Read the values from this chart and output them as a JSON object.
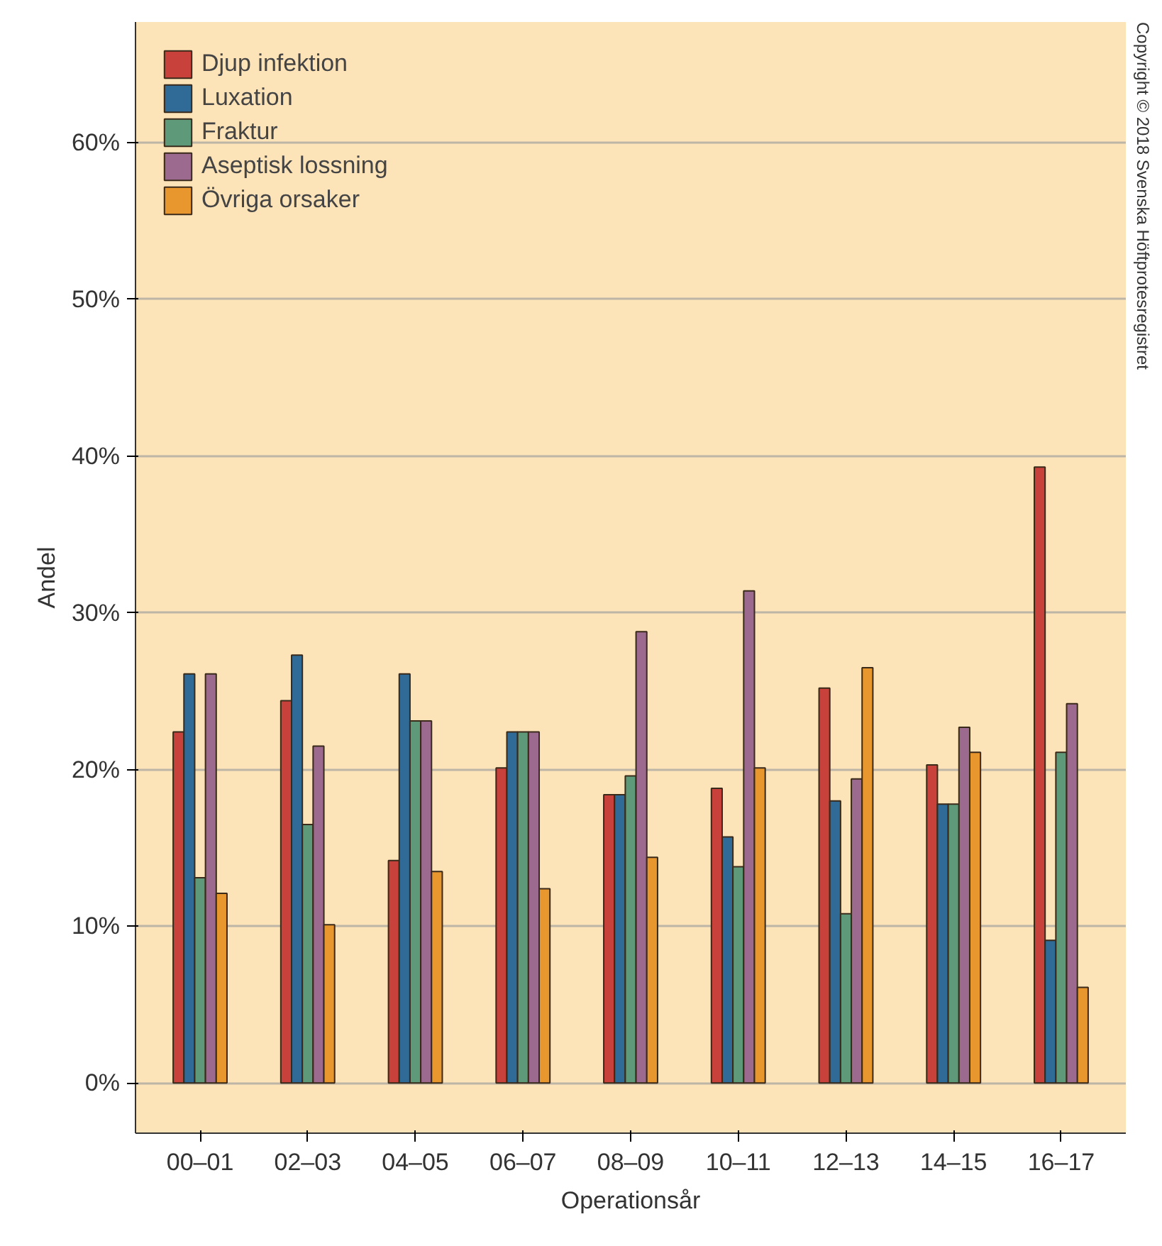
{
  "chart_data": {
    "type": "bar",
    "xlabel": "Operationsår",
    "ylabel": "Andel",
    "categories": [
      "00–01",
      "02–03",
      "04–05",
      "06–07",
      "08–09",
      "10–11",
      "12–13",
      "14–15",
      "16–17"
    ],
    "series": [
      {
        "name": "Djup infektion",
        "color": "#c8413a",
        "values": [
          22.4,
          24.4,
          14.2,
          20.1,
          18.4,
          18.8,
          25.2,
          20.3,
          39.3
        ]
      },
      {
        "name": "Luxation",
        "color": "#2f6b96",
        "values": [
          26.1,
          27.3,
          26.1,
          22.4,
          18.4,
          15.7,
          18.0,
          17.8,
          9.1
        ]
      },
      {
        "name": "Fraktur",
        "color": "#5e9a7a",
        "values": [
          13.1,
          16.5,
          23.1,
          22.4,
          19.6,
          13.8,
          10.8,
          17.8,
          21.1
        ]
      },
      {
        "name": "Aseptisk lossning",
        "color": "#9b6a8e",
        "values": [
          26.1,
          21.5,
          23.1,
          22.4,
          28.8,
          31.4,
          19.4,
          22.7,
          24.2
        ]
      },
      {
        "name": "Övriga orsaker",
        "color": "#e8962e",
        "values": [
          12.1,
          10.1,
          13.5,
          12.4,
          14.4,
          20.1,
          26.5,
          21.1,
          6.1
        ]
      }
    ],
    "ylim": [
      -3.2,
      67.7
    ],
    "yticks": [
      {
        "value": 0,
        "label": "0%"
      },
      {
        "value": 10,
        "label": "10%"
      },
      {
        "value": 20,
        "label": "20%"
      },
      {
        "value": 30,
        "label": "30%"
      },
      {
        "value": 40,
        "label": "40%"
      },
      {
        "value": 50,
        "label": "50%"
      },
      {
        "value": 60,
        "label": "60%"
      }
    ],
    "grid": "y",
    "legend": "top left",
    "annotations": [
      "Copyright © 2018 Svenska Höftprotesregistret"
    ]
  }
}
